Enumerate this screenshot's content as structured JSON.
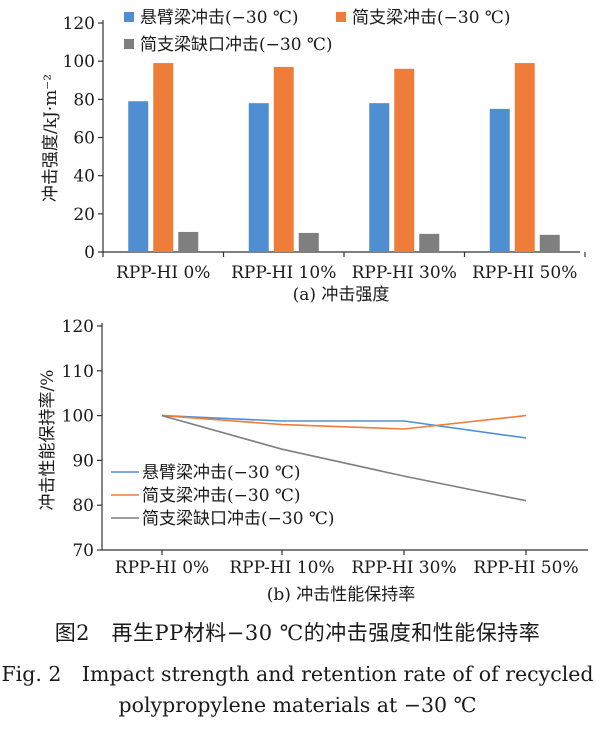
{
  "chart_data": [
    {
      "type": "bar",
      "caption": "(a) 冲击强度",
      "ylabel": "冲击强度/kJ·m⁻²",
      "ylim": [
        0,
        120
      ],
      "yticks": [
        0,
        20,
        40,
        60,
        80,
        100,
        120
      ],
      "categories": [
        "RPP-HI 0%",
        "RPP-HI 10%",
        "RPP-HI 30%",
        "RPP-HI 50%"
      ],
      "series": [
        {
          "name": "悬臂梁冲击(−30 ℃)",
          "color": "#4f8fd1",
          "values": [
            79,
            78,
            78,
            75
          ]
        },
        {
          "name": "简支梁冲击(−30 ℃)",
          "color": "#ee7d3a",
          "values": [
            99,
            97,
            96,
            99
          ]
        },
        {
          "name": "简支梁缺口冲击(−30 ℃)",
          "color": "#7f7f7f",
          "values": [
            10.5,
            10,
            9.5,
            9
          ]
        }
      ],
      "grid": false,
      "legend": "top"
    },
    {
      "type": "line",
      "caption": "(b) 冲击性能保持率",
      "ylabel": "冲击性能保持率/%",
      "ylim": [
        70,
        120
      ],
      "yticks": [
        70,
        80,
        90,
        100,
        110,
        120
      ],
      "categories": [
        "RPP-HI 0%",
        "RPP-HI 10%",
        "RPP-HI 30%",
        "RPP-HI 50%"
      ],
      "series": [
        {
          "name": "悬臂梁冲击(−30 ℃)",
          "color": "#4f8fd1",
          "values": [
            100,
            98.8,
            98.8,
            95
          ]
        },
        {
          "name": "简支梁冲击(−30 ℃)",
          "color": "#ee7d3a",
          "values": [
            100,
            98,
            97,
            100
          ]
        },
        {
          "name": "简支梁缺口冲击(−30 ℃)",
          "color": "#7f7f7f",
          "values": [
            100,
            92.5,
            86.5,
            81
          ]
        }
      ],
      "grid": false,
      "legend": "bottom-left"
    }
  ],
  "figure_caption": {
    "cn": "图2　再生PP材料−30 ℃的冲击强度和性能保持率",
    "en_line1": "Fig. 2　Impact strength and retention rate of of recycled",
    "en_line2": "polypropylene materials at −30 ℃"
  }
}
